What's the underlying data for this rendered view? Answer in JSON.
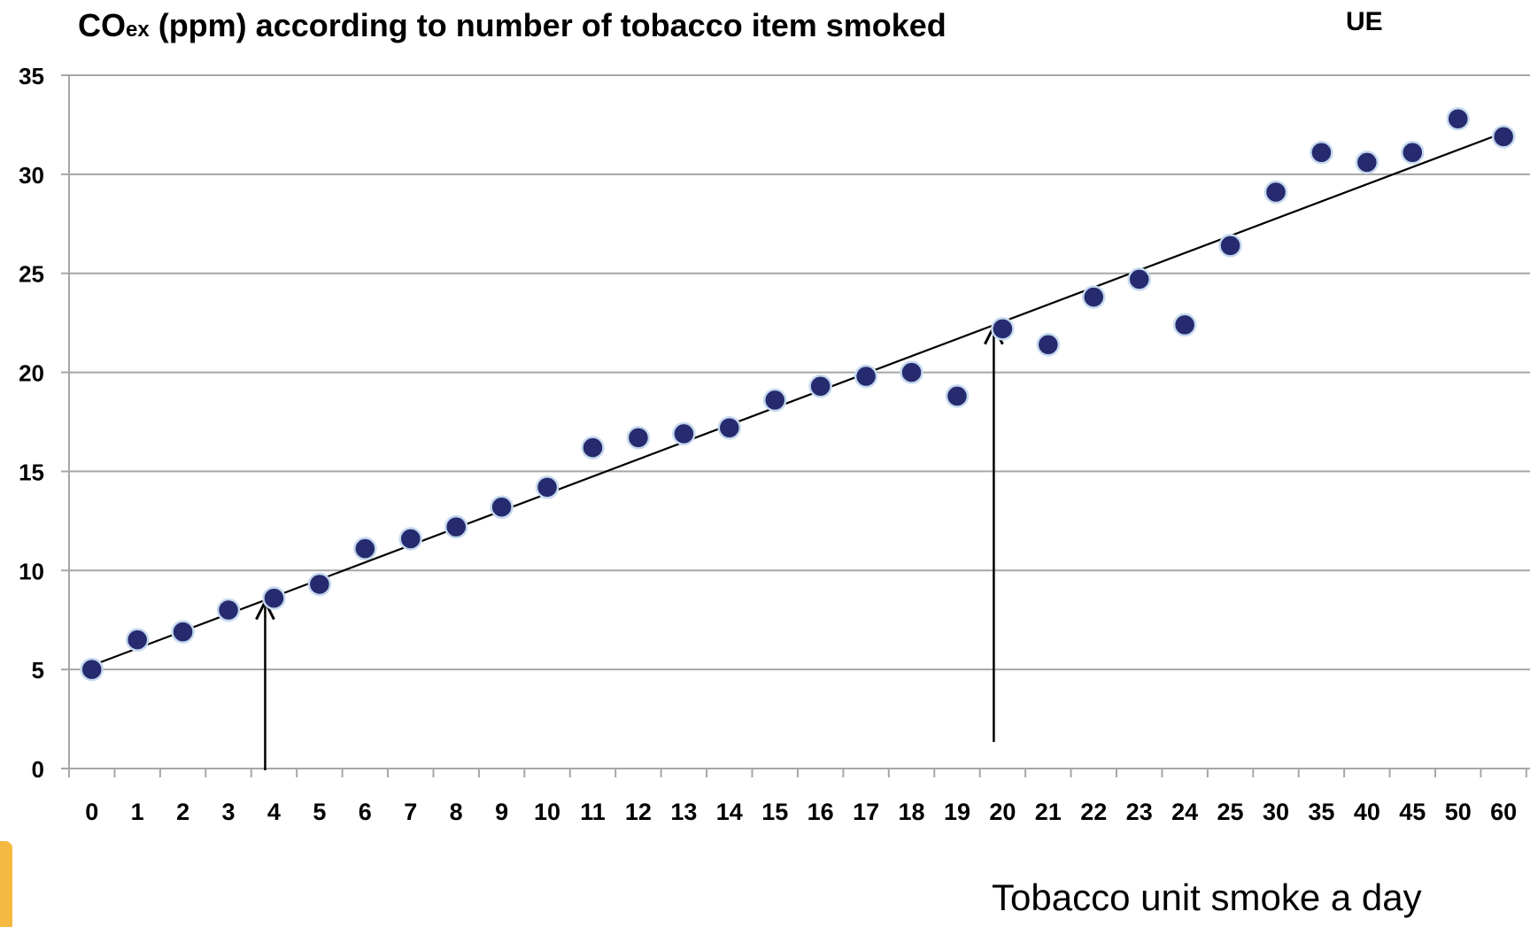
{
  "chart_data": {
    "type": "scatter",
    "title_main": "CO",
    "title_sub": "ex",
    "title_rest": "  (ppm) according to number of tobacco item smoked",
    "corner_label": "UE",
    "xlabel": "Tobacco unit smoke a day",
    "ylabel": "",
    "ylim": [
      0,
      35
    ],
    "yticks": [
      0,
      5,
      10,
      15,
      20,
      25,
      30,
      35
    ],
    "grid": true,
    "categories": [
      "0",
      "1",
      "2",
      "3",
      "4",
      "5",
      "6",
      "7",
      "8",
      "9",
      "10",
      "11",
      "12",
      "13",
      "14",
      "15",
      "16",
      "17",
      "18",
      "19",
      "20",
      "21",
      "22",
      "23",
      "24",
      "25",
      "30",
      "35",
      "40",
      "45",
      "50",
      "60"
    ],
    "series": [
      {
        "values": [
          5.0,
          6.5,
          6.9,
          8.0,
          8.6,
          9.3,
          11.1,
          11.6,
          12.2,
          13.2,
          14.2,
          16.2,
          16.7,
          16.9,
          17.2,
          18.6,
          19.3,
          19.8,
          20.0,
          18.8,
          22.2,
          21.4,
          23.8,
          24.7,
          22.4,
          26.4,
          29.1,
          31.1,
          30.6,
          31.1,
          32.8,
          31.9
        ]
      }
    ],
    "trendline": {
      "start": 5.2,
      "end": 32.1
    },
    "arrows": [
      {
        "category": "4",
        "y_top": 8.6
      },
      {
        "category": "20",
        "y_top": 22.5
      }
    ],
    "colors": {
      "point": "#262a6e",
      "point_edge": "#c5d9ee",
      "grid": "#a6a6a6",
      "line": "#000000"
    }
  }
}
